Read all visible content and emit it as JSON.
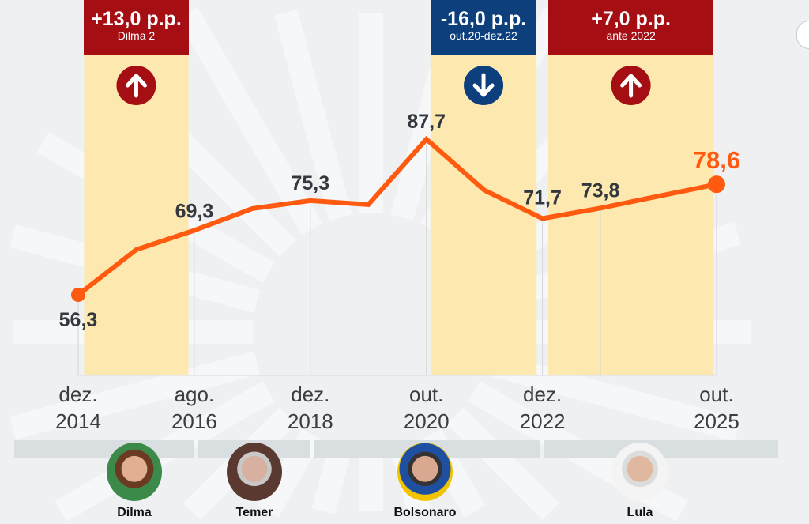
{
  "chart_data": {
    "type": "line",
    "x_tick_labels": [
      {
        "index": 0,
        "line1": "dez.",
        "line2": "2014"
      },
      {
        "index": 2,
        "line1": "ago.",
        "line2": "2016"
      },
      {
        "index": 4,
        "line1": "dez.",
        "line2": "2018"
      },
      {
        "index": 6,
        "line1": "out.",
        "line2": "2020"
      },
      {
        "index": 8,
        "line1": "dez.",
        "line2": "2022"
      },
      {
        "index": 11,
        "line1": "out.",
        "line2": "2025"
      }
    ],
    "values": [
      56.3,
      65.4,
      69.3,
      73.7,
      75.3,
      74.5,
      87.7,
      77.4,
      71.7,
      73.8,
      76.2,
      78.6
    ],
    "data_labels": [
      {
        "index": 0,
        "text": "56,3"
      },
      {
        "index": 2,
        "text": "69,3"
      },
      {
        "index": 4,
        "text": "75,3"
      },
      {
        "index": 6,
        "text": "87,7"
      },
      {
        "index": 8,
        "text": "71,7"
      },
      {
        "index": 9,
        "text": "73,8"
      },
      {
        "index": 11,
        "text": "78,6"
      }
    ],
    "line_color": "#ff5a0f",
    "highlight_periods": [
      {
        "from_index": 0.1,
        "to_index": 1.9,
        "value": "+13,0 p.p.",
        "label": "Dilma 2",
        "direction": "up",
        "color": "#a50f14"
      },
      {
        "from_index": 6.07,
        "to_index": 7.9,
        "value": "-16,0 p.p.",
        "label": "out.20-dez.22",
        "direction": "down",
        "color": "#0d3f7c"
      },
      {
        "from_index": 8.1,
        "to_index": 10.95,
        "value": "+7,0 p.p.",
        "label": "ante 2022",
        "direction": "up",
        "color": "#a50f14"
      }
    ],
    "band_color": "#fde9b0",
    "grid": false
  },
  "presidents": [
    {
      "name": "Dilma"
    },
    {
      "name": "Temer"
    },
    {
      "name": "Bolsonaro"
    },
    {
      "name": "Lula"
    }
  ]
}
